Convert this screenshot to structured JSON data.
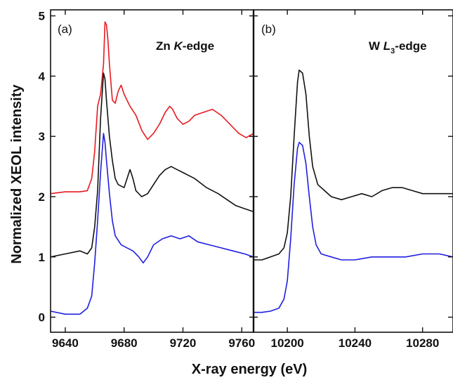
{
  "chart_data": {
    "type": "line",
    "ylabel": "Normalized XEOL intensity",
    "xlabel": "X-ray energy (eV)",
    "ylim": [
      -0.25,
      5.1
    ],
    "yticks": [
      0,
      1,
      2,
      3,
      4,
      5
    ],
    "grid": false,
    "legend": "none",
    "panels": [
      {
        "label": "(a)",
        "edge_prefix": "Zn ",
        "edge_italic": "K",
        "edge_sub": "",
        "edge_suffix": "-edge",
        "xlim": [
          9630,
          9768
        ],
        "xticks": [
          9640,
          9680,
          9720,
          9760
        ],
        "series": [
          {
            "color": "#e8191e",
            "points": [
              [
                9630,
                2.05
              ],
              [
                9640,
                2.08
              ],
              [
                9650,
                2.08
              ],
              [
                9655,
                2.1
              ],
              [
                9658,
                2.3
              ],
              [
                9660,
                2.75
              ],
              [
                9662,
                3.5
              ],
              [
                9664,
                3.7
              ],
              [
                9666,
                4.2
              ],
              [
                9667,
                4.9
              ],
              [
                9668,
                4.85
              ],
              [
                9669,
                4.6
              ],
              [
                9670,
                4.2
              ],
              [
                9672,
                3.6
              ],
              [
                9674,
                3.55
              ],
              [
                9676,
                3.75
              ],
              [
                9678,
                3.85
              ],
              [
                9680,
                3.7
              ],
              [
                9684,
                3.5
              ],
              [
                9688,
                3.35
              ],
              [
                9692,
                3.1
              ],
              [
                9696,
                2.95
              ],
              [
                9700,
                3.05
              ],
              [
                9704,
                3.2
              ],
              [
                9708,
                3.4
              ],
              [
                9711,
                3.5
              ],
              [
                9713,
                3.45
              ],
              [
                9716,
                3.3
              ],
              [
                9720,
                3.2
              ],
              [
                9724,
                3.25
              ],
              [
                9728,
                3.35
              ],
              [
                9734,
                3.4
              ],
              [
                9740,
                3.45
              ],
              [
                9746,
                3.35
              ],
              [
                9752,
                3.2
              ],
              [
                9758,
                3.05
              ],
              [
                9763,
                2.98
              ],
              [
                9768,
                3.05
              ]
            ]
          },
          {
            "color": "#111111",
            "points": [
              [
                9630,
                1.0
              ],
              [
                9640,
                1.05
              ],
              [
                9650,
                1.1
              ],
              [
                9655,
                1.05
              ],
              [
                9658,
                1.15
              ],
              [
                9660,
                1.5
              ],
              [
                9662,
                2.1
              ],
              [
                9664,
                3.3
              ],
              [
                9666,
                4.05
              ],
              [
                9667,
                3.95
              ],
              [
                9668,
                3.6
              ],
              [
                9670,
                3.0
              ],
              [
                9672,
                2.6
              ],
              [
                9674,
                2.3
              ],
              [
                9676,
                2.2
              ],
              [
                9680,
                2.15
              ],
              [
                9684,
                2.45
              ],
              [
                9686,
                2.3
              ],
              [
                9688,
                2.1
              ],
              [
                9692,
                2.0
              ],
              [
                9696,
                2.05
              ],
              [
                9700,
                2.2
              ],
              [
                9704,
                2.35
              ],
              [
                9708,
                2.45
              ],
              [
                9712,
                2.5
              ],
              [
                9716,
                2.45
              ],
              [
                9720,
                2.4
              ],
              [
                9728,
                2.3
              ],
              [
                9736,
                2.15
              ],
              [
                9744,
                2.05
              ],
              [
                9750,
                1.95
              ],
              [
                9756,
                1.85
              ],
              [
                9762,
                1.8
              ],
              [
                9768,
                1.75
              ]
            ]
          },
          {
            "color": "#1f1fe0",
            "points": [
              [
                9630,
                0.1
              ],
              [
                9640,
                0.05
              ],
              [
                9650,
                0.05
              ],
              [
                9655,
                0.15
              ],
              [
                9658,
                0.35
              ],
              [
                9660,
                0.9
              ],
              [
                9662,
                1.6
              ],
              [
                9664,
                2.4
              ],
              [
                9666,
                3.05
              ],
              [
                9667,
                2.9
              ],
              [
                9668,
                2.6
              ],
              [
                9670,
                2.05
              ],
              [
                9672,
                1.6
              ],
              [
                9674,
                1.35
              ],
              [
                9678,
                1.2
              ],
              [
                9682,
                1.15
              ],
              [
                9686,
                1.1
              ],
              [
                9690,
                1.0
              ],
              [
                9693,
                0.9
              ],
              [
                9696,
                1.0
              ],
              [
                9700,
                1.2
              ],
              [
                9706,
                1.3
              ],
              [
                9712,
                1.35
              ],
              [
                9718,
                1.3
              ],
              [
                9724,
                1.35
              ],
              [
                9730,
                1.25
              ],
              [
                9738,
                1.2
              ],
              [
                9746,
                1.15
              ],
              [
                9754,
                1.1
              ],
              [
                9762,
                1.05
              ],
              [
                9768,
                1.0
              ]
            ]
          }
        ]
      },
      {
        "label": "(b)",
        "edge_prefix": "W ",
        "edge_italic": "L",
        "edge_sub": "3",
        "edge_suffix": "-edge",
        "xlim": [
          10180,
          10298
        ],
        "xticks": [
          10200,
          10240,
          10280
        ],
        "series": [
          {
            "color": "#111111",
            "points": [
              [
                10180,
                0.95
              ],
              [
                10185,
                0.95
              ],
              [
                10190,
                1.0
              ],
              [
                10195,
                1.05
              ],
              [
                10198,
                1.15
              ],
              [
                10200,
                1.4
              ],
              [
                10202,
                2.0
              ],
              [
                10204,
                3.0
              ],
              [
                10206,
                3.9
              ],
              [
                10207,
                4.1
              ],
              [
                10209,
                4.05
              ],
              [
                10211,
                3.7
              ],
              [
                10213,
                3.0
              ],
              [
                10215,
                2.5
              ],
              [
                10218,
                2.2
              ],
              [
                10222,
                2.1
              ],
              [
                10226,
                2.0
              ],
              [
                10232,
                1.95
              ],
              [
                10238,
                2.0
              ],
              [
                10244,
                2.05
              ],
              [
                10250,
                2.0
              ],
              [
                10256,
                2.1
              ],
              [
                10262,
                2.15
              ],
              [
                10268,
                2.15
              ],
              [
                10274,
                2.1
              ],
              [
                10280,
                2.05
              ],
              [
                10288,
                2.05
              ],
              [
                10298,
                2.05
              ]
            ]
          },
          {
            "color": "#1f1fe0",
            "points": [
              [
                10180,
                0.08
              ],
              [
                10185,
                0.08
              ],
              [
                10190,
                0.1
              ],
              [
                10195,
                0.15
              ],
              [
                10198,
                0.3
              ],
              [
                10200,
                0.6
              ],
              [
                10202,
                1.3
              ],
              [
                10204,
                2.2
              ],
              [
                10206,
                2.8
              ],
              [
                10207,
                2.9
              ],
              [
                10209,
                2.85
              ],
              [
                10211,
                2.55
              ],
              [
                10213,
                2.0
              ],
              [
                10215,
                1.5
              ],
              [
                10217,
                1.2
              ],
              [
                10220,
                1.05
              ],
              [
                10226,
                1.0
              ],
              [
                10232,
                0.95
              ],
              [
                10240,
                0.95
              ],
              [
                10250,
                1.0
              ],
              [
                10260,
                1.0
              ],
              [
                10270,
                1.0
              ],
              [
                10280,
                1.05
              ],
              [
                10290,
                1.05
              ],
              [
                10298,
                1.0
              ]
            ]
          }
        ]
      }
    ]
  }
}
